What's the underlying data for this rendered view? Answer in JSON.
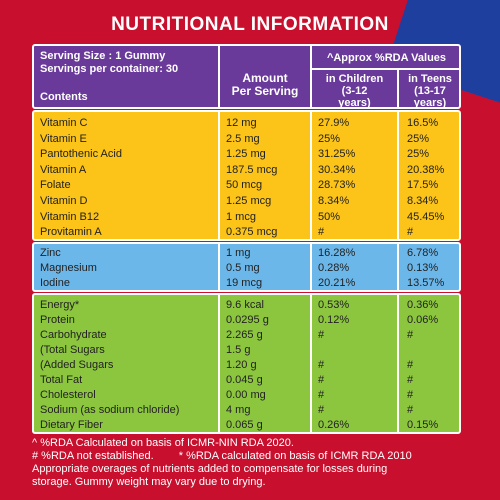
{
  "title": "NUTRITIONAL INFORMATION",
  "header": {
    "serving_size": "Serving Size : 1 Gummy",
    "servings_per_container": "Servings per container: 30",
    "contents": "Contents",
    "amount_line1": "Amount",
    "amount_line2": "Per Serving",
    "rda_title": "^Approx %RDA Values",
    "children_line1": "in Children",
    "children_line2": "(3-12",
    "children_line3": "years)",
    "teens_line1": "in Teens",
    "teens_line2": "(13-17",
    "teens_line3": "years)"
  },
  "vitamins": [
    {
      "name": "Vitamin C",
      "amount": "12 mg",
      "children": "27.9%",
      "teens": "16.5%"
    },
    {
      "name": "Vitamin E",
      "amount": "2.5 mg",
      "children": "25%",
      "teens": "25%"
    },
    {
      "name": "Pantothenic Acid",
      "amount": "1.25 mg",
      "children": "31.25%",
      "teens": "25%"
    },
    {
      "name": "Vitamin A",
      "amount": "187.5 mcg",
      "children": "30.34%",
      "teens": "20.38%"
    },
    {
      "name": "Folate",
      "amount": "50 mcg",
      "children": "28.73%",
      "teens": "17.5%"
    },
    {
      "name": "Vitamin D",
      "amount": "1.25 mcg",
      "children": "8.34%",
      "teens": "8.34%"
    },
    {
      "name": "Vitamin B12",
      "amount": "1 mcg",
      "children": "50%",
      "teens": "45.45%"
    },
    {
      "name": "Provitamin A",
      "amount": "0.375 mcg",
      "children": "#",
      "teens": "#"
    }
  ],
  "minerals": [
    {
      "name": "Zinc",
      "amount": "1 mg",
      "children": "16.28%",
      "teens": "6.78%"
    },
    {
      "name": "Magnesium",
      "amount": "0.5 mg",
      "children": "0.28%",
      "teens": "0.13%"
    },
    {
      "name": "Iodine",
      "amount": "19 mcg",
      "children": "20.21%",
      "teens": "13.57%"
    }
  ],
  "macros": [
    {
      "name": "Energy*",
      "amount": "9.6 kcal",
      "children": "0.53%",
      "teens": "0.36%"
    },
    {
      "name": "Protein",
      "amount": "0.0295 g",
      "children": "0.12%",
      "teens": "0.06%"
    },
    {
      "name": "Carbohydrate",
      "amount": "2.265 g",
      "children": "#",
      "teens": "#"
    },
    {
      "name": "(Total Sugars",
      "amount": "1.5 g",
      "children": "",
      "teens": ""
    },
    {
      "name": "(Added Sugars",
      "amount": "1.20 g",
      "children": "#",
      "teens": "#"
    },
    {
      "name": "Total Fat",
      "amount": "0.045 g",
      "children": "#",
      "teens": "#"
    },
    {
      "name": "Cholesterol",
      "amount": "0.00 mg",
      "children": "#",
      "teens": "#"
    },
    {
      "name": "Sodium (as sodium chloride)",
      "amount": "4 mg",
      "children": "#",
      "teens": "#"
    },
    {
      "name": "Dietary Fiber",
      "amount": "0.065 g",
      "children": "0.26%",
      "teens": "0.15%"
    }
  ],
  "footnotes": {
    "line1": "^ %RDA Calculated on basis of ICMR-NIN RDA 2020.",
    "line2a": "# %RDA not established.",
    "line2b": "* %RDA calculated on basis of ICMR RDA 2010",
    "line3": "Appropriate overages of nutrients added to compensate for losses during",
    "line4": "storage. Gummy weight may vary due to drying."
  },
  "colors": {
    "background": "#c8102e",
    "header": "#6a3a9a",
    "vitamins": "#fcc419",
    "minerals": "#6cb7ea",
    "macros": "#8cc63f"
  }
}
